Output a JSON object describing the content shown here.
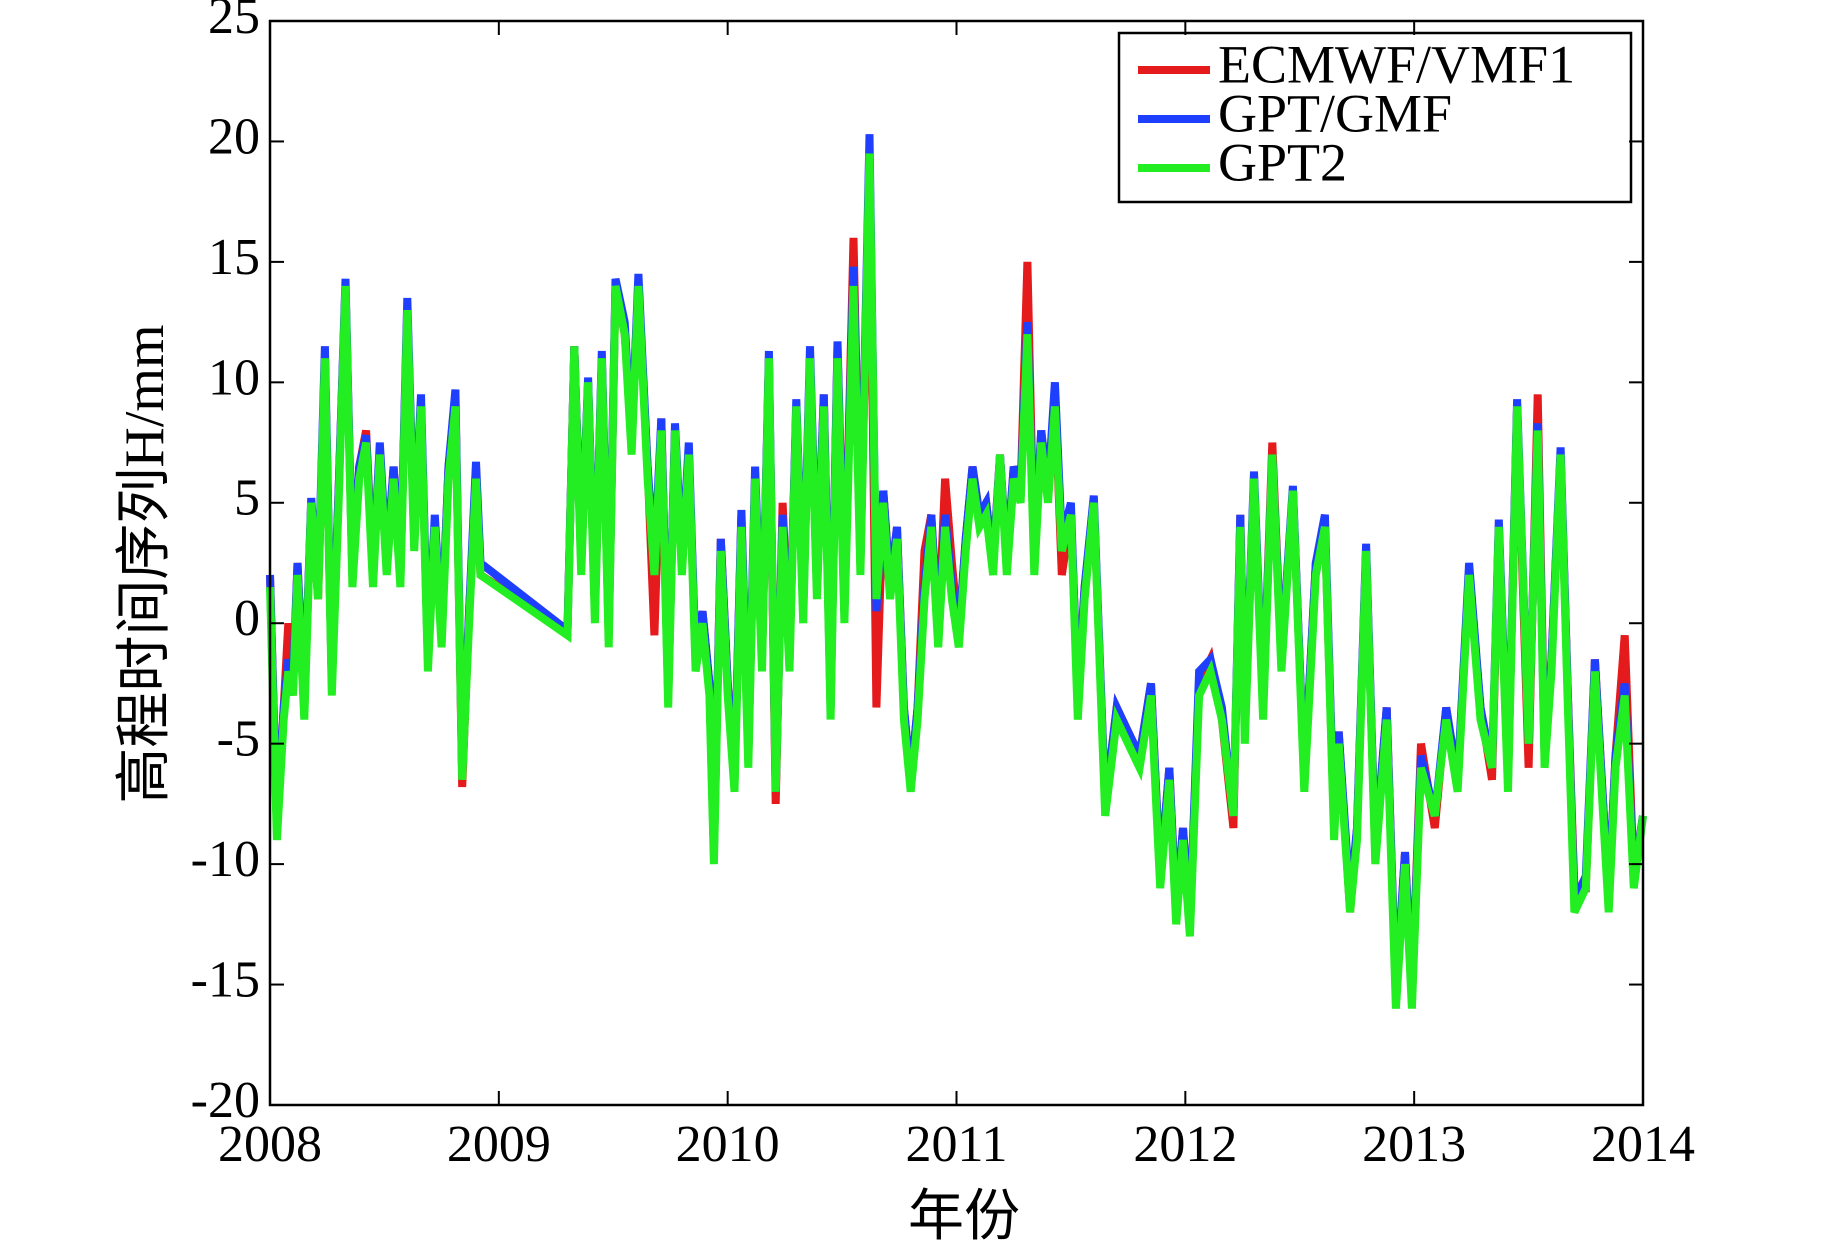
{
  "chart_data": {
    "type": "line",
    "xlabel": "年份",
    "ylabel": "高程时间序列H/mm",
    "xlim": [
      2008,
      2014
    ],
    "xticks": [
      2008,
      2009,
      2010,
      2011,
      2012,
      2013,
      2014
    ],
    "ylim": [
      -20,
      25
    ],
    "yticks": [
      -20,
      -15,
      -10,
      -5,
      0,
      5,
      10,
      15,
      20,
      25
    ],
    "legend": "upper right",
    "x": [
      2008.0,
      2008.03,
      2008.06,
      2008.08,
      2008.1,
      2008.12,
      2008.15,
      2008.18,
      2008.21,
      2008.24,
      2008.27,
      2008.3,
      2008.33,
      2008.36,
      2008.39,
      2008.42,
      2008.45,
      2008.48,
      2008.51,
      2008.54,
      2008.57,
      2008.6,
      2008.63,
      2008.66,
      2008.69,
      2008.72,
      2008.75,
      2008.78,
      2008.81,
      2008.84,
      2008.87,
      2008.9,
      2008.92,
      2009.3,
      2009.33,
      2009.36,
      2009.39,
      2009.42,
      2009.45,
      2009.48,
      2009.51,
      2009.55,
      2009.58,
      2009.61,
      2009.65,
      2009.68,
      2009.71,
      2009.74,
      2009.77,
      2009.8,
      2009.83,
      2009.86,
      2009.89,
      2009.92,
      2009.94,
      2009.97,
      2010.0,
      2010.03,
      2010.06,
      2010.09,
      2010.12,
      2010.15,
      2010.18,
      2010.21,
      2010.24,
      2010.27,
      2010.3,
      2010.33,
      2010.36,
      2010.39,
      2010.42,
      2010.45,
      2010.48,
      2010.51,
      2010.55,
      2010.58,
      2010.62,
      2010.65,
      2010.68,
      2010.71,
      2010.74,
      2010.77,
      2010.8,
      2010.83,
      2010.86,
      2010.89,
      2010.92,
      2010.95,
      2010.98,
      2011.01,
      2011.04,
      2011.07,
      2011.1,
      2011.13,
      2011.16,
      2011.19,
      2011.22,
      2011.25,
      2011.28,
      2011.31,
      2011.34,
      2011.37,
      2011.4,
      2011.43,
      2011.46,
      2011.5,
      2011.53,
      2011.56,
      2011.6,
      2011.65,
      2011.7,
      2011.75,
      2011.8,
      2011.85,
      2011.89,
      2011.93,
      2011.96,
      2011.99,
      2012.02,
      2012.06,
      2012.11,
      2012.16,
      2012.21,
      2012.24,
      2012.26,
      2012.3,
      2012.34,
      2012.38,
      2012.42,
      2012.47,
      2012.52,
      2012.57,
      2012.61,
      2012.65,
      2012.67,
      2012.72,
      2012.75,
      2012.79,
      2012.83,
      2012.88,
      2012.92,
      2012.96,
      2012.99,
      2013.03,
      2013.09,
      2013.14,
      2013.19,
      2013.24,
      2013.29,
      2013.34,
      2013.37,
      2013.41,
      2013.45,
      2013.5,
      2013.54,
      2013.57,
      2013.6,
      2013.64,
      2013.67,
      2013.7,
      2013.75,
      2013.79,
      2013.85,
      2013.88,
      2013.92,
      2013.96,
      2014.0
    ],
    "series": [
      {
        "name": "ECMWF/VMF1",
        "color": "#e41a1c",
        "width": 8,
        "values": [
          2,
          -8.5,
          -3.5,
          0,
          -3,
          2.5,
          -3.5,
          5,
          1,
          11,
          -2.5,
          5.5,
          14,
          2,
          6.5,
          8,
          2,
          7,
          2.5,
          6.5,
          2,
          13,
          3.5,
          9,
          -1.5,
          4,
          -0.5,
          6.5,
          9.5,
          -6.8,
          0.5,
          6,
          2,
          -0.3,
          11.5,
          2.5,
          10,
          0.5,
          11,
          -0.5,
          14,
          12,
          8,
          14,
          6.5,
          -0.5,
          8.5,
          -3,
          8,
          2.5,
          7,
          -1.5,
          0.5,
          -2.5,
          -9.5,
          3.5,
          -2.5,
          -6.5,
          4.5,
          -5.5,
          6,
          -1.5,
          11,
          -7.5,
          5,
          -1.5,
          9,
          0.5,
          11,
          1.5,
          9.5,
          -3.5,
          11.5,
          0.5,
          16,
          2.5,
          19.5,
          -3.5,
          5.5,
          1.5,
          4,
          -3.5,
          -6.5,
          -3.5,
          3,
          4.5,
          -0.5,
          6,
          2.5,
          -0.5,
          3.5,
          6.5,
          4.5,
          5,
          2.5,
          7,
          2.5,
          6.5,
          5.5,
          15,
          2.5,
          8,
          5.5,
          9.5,
          2,
          4.5,
          -3,
          1.5,
          5,
          -7.5,
          -3.5,
          -4.5,
          -5.5,
          -2.5,
          -10.5,
          -6,
          -12,
          -8.5,
          -12.5,
          -2.5,
          -1.5,
          -4,
          -8.5,
          4.5,
          -4.5,
          6,
          -3.5,
          7.5,
          -1.5,
          5.5,
          -6.5,
          2.5,
          4,
          -8.5,
          -4.5,
          -12,
          -8.5,
          3,
          -9.5,
          -3.5,
          -15.5,
          -9.5,
          -15.5,
          -5,
          -8.5,
          -3.5,
          -6.5,
          2,
          -3.5,
          -6.5,
          4,
          -6.5,
          9,
          -6,
          9.5,
          -5.5,
          -1.5,
          7,
          -2.5,
          -11,
          -11,
          -1.5,
          -11.5,
          -5.5,
          -0.5,
          -10.5,
          -8
        ]
      },
      {
        "name": "GPT/GMF",
        "color": "#1f3fff",
        "width": 8,
        "values": [
          2,
          -8.5,
          -3.5,
          -1.5,
          -2.5,
          2.5,
          -3.5,
          5.2,
          1.5,
          11.5,
          -2.5,
          5.5,
          14.3,
          2,
          6.5,
          7.8,
          2,
          7.5,
          2.5,
          6.5,
          2,
          13.5,
          3.5,
          9.5,
          -1.5,
          4.5,
          -0.5,
          6.5,
          9.7,
          -6.3,
          0.5,
          6.7,
          2.5,
          -0.3,
          11.5,
          2.5,
          10.2,
          0.5,
          11.3,
          -0.5,
          14.3,
          12.5,
          7.5,
          14.5,
          6.5,
          2.5,
          8.5,
          -3,
          8.3,
          2.5,
          7.5,
          -1.5,
          0.5,
          -2.5,
          -9.5,
          3.5,
          -2.5,
          -6.5,
          4.7,
          -5.5,
          6.5,
          -1.5,
          11.3,
          -7,
          4.5,
          -1.5,
          9.3,
          0.5,
          11.5,
          1.5,
          9.5,
          -3.5,
          11.7,
          0.5,
          14.8,
          2.5,
          20.3,
          0.5,
          5.5,
          1.5,
          4,
          -3.5,
          -6.5,
          -3.5,
          1.5,
          4.5,
          -0.5,
          4.5,
          1.5,
          -0.5,
          3.5,
          6.5,
          4.5,
          5,
          2.5,
          7,
          2.5,
          6.5,
          5.5,
          12.5,
          2.5,
          8,
          5.5,
          10,
          3.5,
          5,
          -3.5,
          1.5,
          5.3,
          -7.5,
          -3.5,
          -4.5,
          -5.5,
          -2.5,
          -10.5,
          -6,
          -12,
          -8.5,
          -12.5,
          -2,
          -1.5,
          -3.5,
          -8,
          4.5,
          -4.5,
          6.3,
          -3.5,
          7,
          -1.5,
          5.7,
          -6.5,
          2.5,
          4.5,
          -8.5,
          -4.5,
          -11.5,
          -8.5,
          3.3,
          -9.5,
          -3.5,
          -15.5,
          -9.5,
          -15.5,
          -5.5,
          -8,
          -3.5,
          -6.5,
          2.5,
          -3.5,
          -6,
          4.3,
          -6.5,
          9.3,
          -5,
          8.3,
          -5.5,
          -1.5,
          7.3,
          -2.5,
          -11.5,
          -10.5,
          -1.5,
          -11.5,
          -5.5,
          -2.5,
          -10.5,
          -8
        ]
      },
      {
        "name": "GPT2",
        "color": "#22ee22",
        "width": 8,
        "values": [
          1.5,
          -9,
          -4,
          -2,
          -3,
          2,
          -4,
          5,
          1,
          11,
          -3,
          5,
          14,
          1.5,
          6,
          7.5,
          1.5,
          7,
          2,
          6,
          1.5,
          13,
          3,
          9,
          -2,
          4,
          -1,
          6,
          9,
          -6.5,
          0,
          6,
          2,
          -0.5,
          11.5,
          2,
          10,
          0,
          11,
          -1,
          14,
          12,
          7,
          14,
          6,
          2,
          8,
          -3.5,
          8,
          2,
          7,
          -2,
          0,
          -3,
          -10,
          3,
          -3,
          -7,
          4,
          -6,
          6,
          -2,
          11,
          -7,
          4,
          -2,
          9,
          0,
          11,
          1,
          9,
          -4,
          11,
          0,
          14,
          2,
          19.5,
          1,
          5,
          1,
          3.5,
          -4,
          -7,
          -4,
          1,
          4,
          -1,
          4,
          1,
          -1,
          3,
          6,
          4,
          4.5,
          2,
          7,
          2,
          6,
          5,
          12,
          2,
          7.5,
          5,
          9,
          3,
          4.5,
          -4,
          1,
          5,
          -8,
          -4,
          -5,
          -6,
          -3,
          -11,
          -6.5,
          -12.5,
          -9,
          -13,
          -3,
          -2,
          -4,
          -8,
          4,
          -5,
          6,
          -4,
          7,
          -2,
          5.5,
          -7,
          2,
          4,
          -9,
          -5,
          -12,
          -9,
          3,
          -10,
          -4,
          -16,
          -10,
          -16,
          -6,
          -8,
          -4,
          -7,
          2,
          -4,
          -6,
          4,
          -7,
          9,
          -5,
          8,
          -6,
          -2,
          7,
          -3,
          -12,
          -11,
          -2,
          -12,
          -6,
          -3,
          -11,
          -8
        ]
      }
    ]
  }
}
